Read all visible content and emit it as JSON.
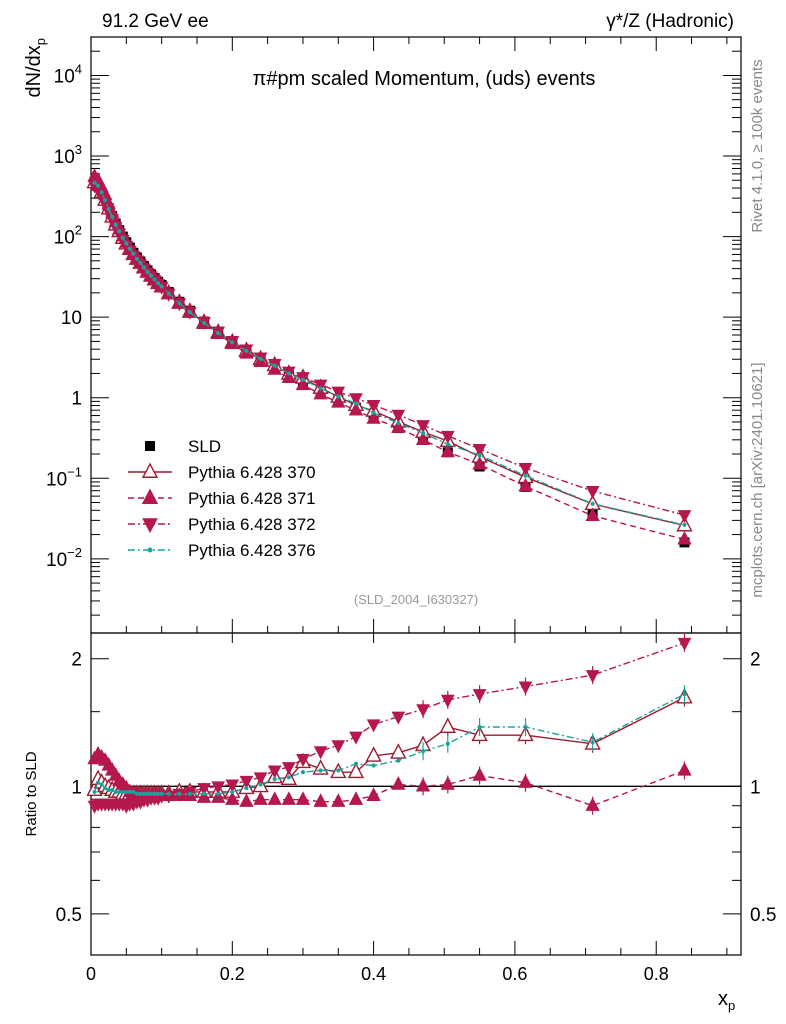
{
  "header": {
    "left": "91.2 GeV ee",
    "right": "γ*/Z (Hadronic)"
  },
  "side_labels": {
    "top": "Rivet 4.1.0, ≥ 100k events",
    "bottom": "mcplots.cern.ch [arXiv:2401.10621]"
  },
  "chart_data": {
    "type": "scatter",
    "title": "π#pm scaled Momentum, (uds) events",
    "analysis_tag": "(SLD_2004_I630327)",
    "xlabel": "x_p",
    "ylabel": "dN/dx_p",
    "ratio_ylabel": "Ratio to SLD",
    "xlim": [
      0,
      0.92
    ],
    "ylim": [
      0.0012,
      30000
    ],
    "ratio_ylim": [
      0.4,
      2.3
    ],
    "yscale": "log",
    "ratio_yscale": "log",
    "x_ticks": [
      "0",
      "0.2",
      "0.4",
      "0.6",
      "0.8"
    ],
    "y_ticks": [
      "10^-2",
      "10^-1",
      "1",
      "10",
      "10^2",
      "10^3",
      "10^4"
    ],
    "ratio_ticks": [
      "0.5",
      "1",
      "2"
    ],
    "x": [
      0.005,
      0.01,
      0.015,
      0.02,
      0.025,
      0.03,
      0.035,
      0.04,
      0.045,
      0.05,
      0.055,
      0.06,
      0.065,
      0.07,
      0.075,
      0.08,
      0.085,
      0.09,
      0.095,
      0.1,
      0.11,
      0.125,
      0.14,
      0.16,
      0.18,
      0.2,
      0.22,
      0.24,
      0.26,
      0.28,
      0.3,
      0.325,
      0.35,
      0.375,
      0.4,
      0.435,
      0.47,
      0.505,
      0.55,
      0.615,
      0.71,
      0.84
    ],
    "series": [
      {
        "name": "SLD",
        "marker": "square",
        "color": "#000000",
        "line": "none",
        "values": [
          480,
          420,
          350,
          285,
          225,
          180,
          145,
          120,
          100,
          85,
          73,
          63,
          55,
          49,
          43,
          38,
          34,
          30.5,
          27.5,
          25,
          20.5,
          15.5,
          12,
          8.8,
          6.6,
          5.0,
          3.85,
          3.0,
          2.4,
          1.9,
          1.55,
          1.2,
          0.95,
          0.75,
          0.58,
          0.42,
          0.3,
          0.21,
          0.14,
          0.078,
          0.038,
          0.016
        ]
      },
      {
        "name": "Pythia 6.428 370",
        "marker": "open-triangle-up",
        "color": "#9b1b30",
        "line": "solid",
        "ratios": [
          0.98,
          1.04,
          1.02,
          1.0,
          0.99,
          0.98,
          0.97,
          0.97,
          0.96,
          0.96,
          0.96,
          0.96,
          0.96,
          0.96,
          0.96,
          0.96,
          0.96,
          0.96,
          0.96,
          0.96,
          0.96,
          0.97,
          0.97,
          0.97,
          0.97,
          0.97,
          0.99,
          1.0,
          1.05,
          1.04,
          1.14,
          1.1,
          1.08,
          1.08,
          1.18,
          1.2,
          1.25,
          1.38,
          1.32,
          1.32,
          1.26,
          1.62
        ]
      },
      {
        "name": "Pythia 6.428 371",
        "marker": "filled-triangle-up",
        "color": "#b5174e",
        "line": "dashed",
        "ratios": [
          1.16,
          1.19,
          1.17,
          1.15,
          1.12,
          1.09,
          1.06,
          1.03,
          1.01,
          0.99,
          0.97,
          0.96,
          0.96,
          0.95,
          0.95,
          0.95,
          0.95,
          0.95,
          0.95,
          0.95,
          0.95,
          0.95,
          0.95,
          0.94,
          0.94,
          0.93,
          0.92,
          0.93,
          0.93,
          0.93,
          0.93,
          0.92,
          0.92,
          0.93,
          0.95,
          1.01,
          1.0,
          1.01,
          1.06,
          1.02,
          0.9,
          1.09
        ]
      },
      {
        "name": "Pythia 6.428 372",
        "marker": "filled-triangle-down",
        "color": "#b5174e",
        "line": "dash-dot",
        "ratios": [
          0.9,
          0.91,
          0.91,
          0.91,
          0.91,
          0.91,
          0.91,
          0.91,
          0.91,
          0.9,
          0.91,
          0.91,
          0.92,
          0.92,
          0.93,
          0.93,
          0.94,
          0.94,
          0.94,
          0.95,
          0.95,
          0.96,
          0.97,
          0.99,
          1.0,
          1.01,
          1.03,
          1.05,
          1.09,
          1.11,
          1.16,
          1.21,
          1.25,
          1.31,
          1.4,
          1.46,
          1.52,
          1.6,
          1.65,
          1.72,
          1.83,
          2.18
        ]
      },
      {
        "name": "Pythia 6.428 376",
        "marker": "dot",
        "color": "#1aa39a",
        "line": "dash-dot",
        "ratios": [
          0.97,
          1.02,
          1.01,
          0.99,
          0.98,
          0.98,
          0.97,
          0.97,
          0.97,
          0.97,
          0.97,
          0.97,
          0.96,
          0.96,
          0.96,
          0.96,
          0.96,
          0.96,
          0.96,
          0.96,
          0.96,
          0.96,
          0.96,
          0.96,
          0.96,
          0.97,
          0.99,
          1.01,
          1.04,
          1.05,
          1.08,
          1.09,
          1.09,
          1.13,
          1.12,
          1.15,
          1.21,
          1.26,
          1.38,
          1.38,
          1.27,
          1.65
        ]
      }
    ],
    "legend": [
      "SLD",
      "Pythia 6.428 370",
      "Pythia 6.428 371",
      "Pythia 6.428 372",
      "Pythia 6.428 376"
    ],
    "legend_position": "lower-left"
  }
}
